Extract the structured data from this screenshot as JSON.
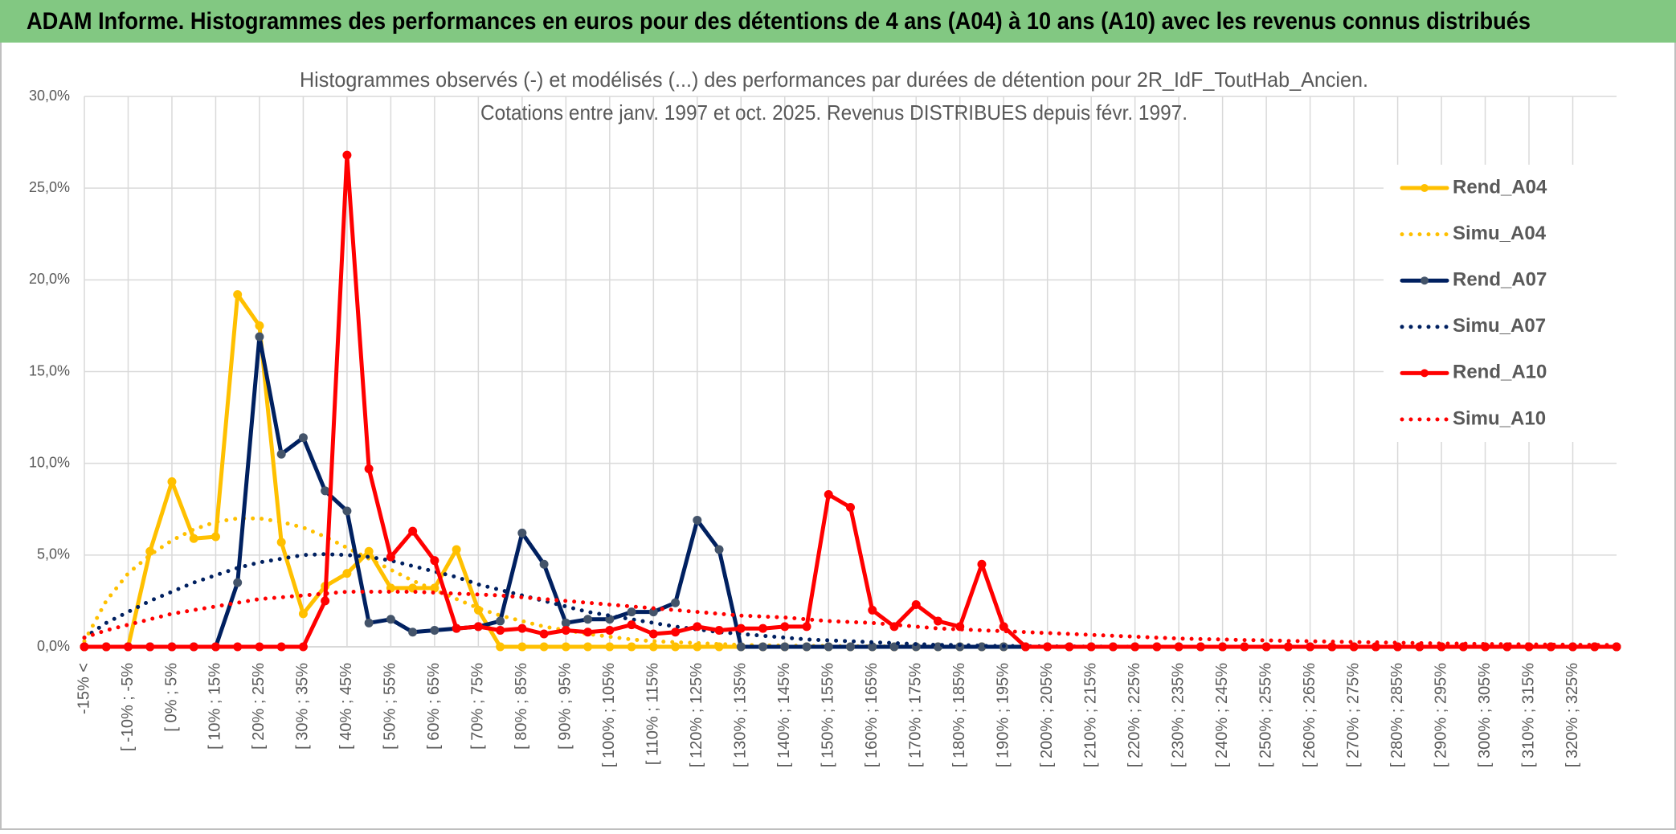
{
  "header": {
    "title": "ADAM Informe. Histogrammes des performances en euros pour des détentions de 4 ans (A04) à 10 ans (A10) avec les revenus connus distribués"
  },
  "chart_data": {
    "type": "line",
    "title": [
      "Histogrammes observés (-) et modélisés (...) des performances par durées de détention pour 2R_IdF_ToutHab_Ancien.",
      "Cotations entre janv. 1997 et oct. 2025. Revenus DISTRIBUES depuis févr. 1997."
    ],
    "categories": [
      "-15% <",
      null,
      "[ -10% ; -5%",
      null,
      "[ 0% ; 5%",
      null,
      "[ 10% ; 15%",
      null,
      "[ 20% ; 25%",
      null,
      "[ 30% ; 35%",
      null,
      "[ 40% ; 45%",
      null,
      "[ 50% ; 55%",
      null,
      "[ 60% ; 65%",
      null,
      "[ 70% ; 75%",
      null,
      "[ 80% ; 85%",
      null,
      "[ 90% ; 95%",
      null,
      "[ 100% ; 105%",
      null,
      "[ 110% ; 115%",
      null,
      "[ 120% ; 125%",
      null,
      "[ 130% ; 135%",
      null,
      "[ 140% ; 145%",
      null,
      "[ 150% ; 155%",
      null,
      "[ 160% ; 165%",
      null,
      "[ 170% ; 175%",
      null,
      "[ 180% ; 185%",
      null,
      "[ 190% ; 195%",
      null,
      "[ 200% ; 205%",
      null,
      "[ 210% ; 215%",
      null,
      "[ 220% ; 225%",
      null,
      "[ 230% ; 235%",
      null,
      "[ 240% ; 245%",
      null,
      "[ 250% ; 255%",
      null,
      "[ 260% ; 265%",
      null,
      "[ 270% ; 275%",
      null,
      "[ 280% ; 285%",
      null,
      "[ 290% ; 295%",
      null,
      "[ 300% ; 305%",
      null,
      "[ 310% ; 315%",
      null,
      "[ 320% ; 325%",
      null,
      null
    ],
    "series": [
      {
        "name": "Rend_A04",
        "color": "#ffc000",
        "line_style": "solid",
        "markers": true,
        "values": [
          0,
          0,
          0,
          5.2,
          9.0,
          5.9,
          6.0,
          19.2,
          17.5,
          5.7,
          1.8,
          3.3,
          4.0,
          5.2,
          3.2,
          3.2,
          3.2,
          5.3,
          2.0,
          0,
          0,
          0,
          0,
          0,
          0,
          0,
          0,
          0,
          0,
          0,
          0,
          0,
          0,
          0,
          0,
          0,
          0,
          0,
          0,
          0,
          0,
          0,
          0,
          0,
          0,
          0,
          0,
          0,
          0,
          0,
          0,
          0,
          0,
          0,
          0,
          0,
          0,
          0,
          0,
          0,
          0,
          0,
          0,
          0,
          0,
          0,
          0,
          0,
          0,
          0,
          0
        ]
      },
      {
        "name": "Simu_A04",
        "color": "#ffc000",
        "line_style": "dotted",
        "markers": false,
        "values": [
          0.3,
          2.5,
          4.0,
          5.0,
          5.8,
          6.4,
          6.8,
          7.0,
          7.0,
          6.8,
          6.5,
          6.0,
          5.4,
          4.8,
          4.2,
          3.6,
          3.1,
          2.6,
          2.1,
          1.7,
          1.4,
          1.1,
          0.9,
          0.7,
          0.55,
          0.4,
          0.3,
          0.25,
          0.2,
          0.15,
          0.1,
          0.08,
          0.06,
          0.05,
          0.04,
          0.03,
          0.02,
          0.02,
          0.01,
          0.01,
          0,
          0,
          0,
          0,
          0,
          0,
          0,
          0,
          0,
          0,
          0,
          0,
          0,
          0,
          0,
          0,
          0,
          0,
          0,
          0,
          0,
          0,
          0,
          0,
          0,
          0,
          0,
          0,
          0,
          0,
          0
        ]
      },
      {
        "name": "Rend_A07",
        "color": "#002060",
        "marker_color": "#44546a",
        "line_style": "solid",
        "markers": true,
        "values": [
          0,
          0,
          0,
          0,
          0,
          0,
          0,
          3.5,
          16.9,
          10.5,
          11.4,
          8.5,
          7.4,
          1.3,
          1.5,
          0.8,
          0.9,
          1.0,
          1.1,
          1.4,
          6.2,
          4.5,
          1.3,
          1.5,
          1.5,
          1.9,
          1.9,
          2.4,
          6.9,
          5.3,
          0,
          0,
          0,
          0,
          0,
          0,
          0,
          0,
          0,
          0,
          0,
          0,
          0,
          0,
          0,
          0,
          0,
          0,
          0,
          0,
          0,
          0,
          0,
          0,
          0,
          0,
          0,
          0,
          0,
          0,
          0,
          0,
          0,
          0,
          0,
          0,
          0,
          0,
          0,
          0,
          0
        ]
      },
      {
        "name": "Simu_A07",
        "color": "#002060",
        "line_style": "dotted",
        "markers": false,
        "values": [
          0.5,
          1.3,
          1.9,
          2.5,
          3.0,
          3.5,
          3.9,
          4.3,
          4.6,
          4.8,
          5.0,
          5.05,
          5.0,
          4.9,
          4.7,
          4.4,
          4.1,
          3.8,
          3.4,
          3.1,
          2.8,
          2.5,
          2.2,
          1.9,
          1.7,
          1.5,
          1.3,
          1.1,
          0.95,
          0.8,
          0.7,
          0.6,
          0.5,
          0.4,
          0.35,
          0.3,
          0.25,
          0.2,
          0.15,
          0.1,
          0.1,
          0.05,
          0.04,
          0.03,
          0.02,
          0.02,
          0.01,
          0.01,
          0,
          0,
          0,
          0,
          0,
          0,
          0,
          0,
          0,
          0,
          0,
          0,
          0,
          0,
          0,
          0,
          0,
          0,
          0,
          0,
          0,
          0,
          0
        ]
      },
      {
        "name": "Rend_A10",
        "color": "#ff0000",
        "line_style": "solid",
        "markers": true,
        "values": [
          0,
          0,
          0,
          0,
          0,
          0,
          0,
          0,
          0,
          0,
          0,
          2.5,
          26.8,
          9.7,
          4.9,
          6.3,
          4.7,
          1.0,
          1.1,
          0.9,
          1.0,
          0.7,
          0.9,
          0.8,
          0.9,
          1.2,
          0.7,
          0.8,
          1.1,
          0.9,
          1.0,
          1.0,
          1.1,
          1.1,
          8.3,
          7.6,
          2.0,
          1.1,
          2.3,
          1.4,
          1.1,
          4.5,
          1.1,
          0,
          0,
          0,
          0,
          0,
          0,
          0,
          0,
          0,
          0,
          0,
          0,
          0,
          0,
          0,
          0,
          0,
          0,
          0,
          0,
          0,
          0,
          0,
          0,
          0,
          0,
          0,
          0
        ]
      },
      {
        "name": "Simu_A10",
        "color": "#ff0000",
        "line_style": "dotted",
        "markers": false,
        "values": [
          0.5,
          0.9,
          1.2,
          1.5,
          1.8,
          2.0,
          2.2,
          2.4,
          2.6,
          2.7,
          2.8,
          2.9,
          3.0,
          3.0,
          3.0,
          3.0,
          2.95,
          2.9,
          2.85,
          2.8,
          2.7,
          2.6,
          2.5,
          2.4,
          2.3,
          2.2,
          2.1,
          2.0,
          1.9,
          1.8,
          1.7,
          1.65,
          1.6,
          1.5,
          1.4,
          1.35,
          1.3,
          1.2,
          1.1,
          1.0,
          0.95,
          0.9,
          0.85,
          0.8,
          0.75,
          0.7,
          0.65,
          0.6,
          0.55,
          0.5,
          0.45,
          0.42,
          0.4,
          0.37,
          0.35,
          0.32,
          0.3,
          0.28,
          0.26,
          0.24,
          0.22,
          0.2,
          0.18,
          0.17,
          0.15,
          0.14,
          0.13,
          0.12,
          0.11,
          0.1,
          0.1
        ]
      }
    ],
    "ylim": [
      0,
      30
    ],
    "yticks": [
      {
        "value": 0,
        "label": "0,0%"
      },
      {
        "value": 5,
        "label": "5,0%"
      },
      {
        "value": 10,
        "label": "10,0%"
      },
      {
        "value": 15,
        "label": "15,0%"
      },
      {
        "value": 20,
        "label": "20,0%"
      },
      {
        "value": 25,
        "label": "25,0%"
      },
      {
        "value": 30,
        "label": "30,0%"
      }
    ],
    "grid": true,
    "legend": "right"
  }
}
